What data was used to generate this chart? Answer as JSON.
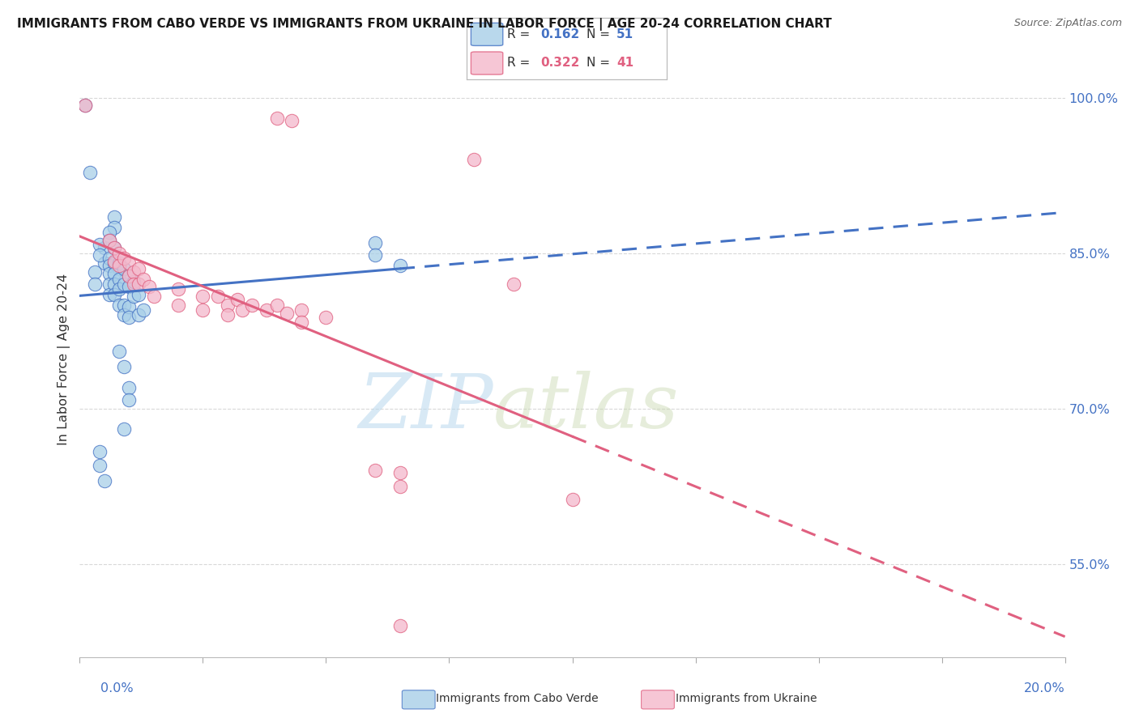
{
  "title": "IMMIGRANTS FROM CABO VERDE VS IMMIGRANTS FROM UKRAINE IN LABOR FORCE | AGE 20-24 CORRELATION CHART",
  "source": "Source: ZipAtlas.com",
  "ylabel": "In Labor Force | Age 20-24",
  "y_ticks": [
    0.55,
    0.7,
    0.85,
    1.0
  ],
  "y_tick_labels": [
    "55.0%",
    "70.0%",
    "85.0%",
    "100.0%"
  ],
  "cabo_verde_R": 0.162,
  "cabo_verde_N": 51,
  "ukraine_R": 0.322,
  "ukraine_N": 41,
  "cabo_verde_color": "#a8cfe8",
  "ukraine_color": "#f4b8cb",
  "cabo_verde_line_color": "#4472c4",
  "ukraine_line_color": "#e06080",
  "cabo_verde_points": [
    [
      0.001,
      0.993
    ],
    [
      0.002,
      0.928
    ],
    [
      0.007,
      0.885
    ],
    [
      0.007,
      0.875
    ],
    [
      0.005,
      0.855
    ],
    [
      0.005,
      0.84
    ],
    [
      0.008,
      0.835
    ],
    [
      0.006,
      0.87
    ],
    [
      0.003,
      0.832
    ],
    [
      0.003,
      0.82
    ],
    [
      0.004,
      0.858
    ],
    [
      0.004,
      0.848
    ],
    [
      0.006,
      0.862
    ],
    [
      0.006,
      0.845
    ],
    [
      0.006,
      0.838
    ],
    [
      0.006,
      0.83
    ],
    [
      0.006,
      0.82
    ],
    [
      0.006,
      0.81
    ],
    [
      0.007,
      0.855
    ],
    [
      0.007,
      0.84
    ],
    [
      0.007,
      0.83
    ],
    [
      0.007,
      0.82
    ],
    [
      0.007,
      0.81
    ],
    [
      0.008,
      0.84
    ],
    [
      0.008,
      0.825
    ],
    [
      0.008,
      0.815
    ],
    [
      0.008,
      0.8
    ],
    [
      0.009,
      0.835
    ],
    [
      0.009,
      0.82
    ],
    [
      0.009,
      0.8
    ],
    [
      0.009,
      0.79
    ],
    [
      0.01,
      0.828
    ],
    [
      0.01,
      0.818
    ],
    [
      0.01,
      0.798
    ],
    [
      0.01,
      0.788
    ],
    [
      0.011,
      0.822
    ],
    [
      0.011,
      0.808
    ],
    [
      0.012,
      0.81
    ],
    [
      0.012,
      0.79
    ],
    [
      0.013,
      0.795
    ],
    [
      0.008,
      0.755
    ],
    [
      0.009,
      0.74
    ],
    [
      0.01,
      0.72
    ],
    [
      0.01,
      0.708
    ],
    [
      0.009,
      0.68
    ],
    [
      0.06,
      0.86
    ],
    [
      0.06,
      0.848
    ],
    [
      0.065,
      0.838
    ],
    [
      0.004,
      0.658
    ],
    [
      0.004,
      0.645
    ],
    [
      0.005,
      0.63
    ]
  ],
  "ukraine_points": [
    [
      0.001,
      0.993
    ],
    [
      0.04,
      0.98
    ],
    [
      0.043,
      0.978
    ],
    [
      0.08,
      0.94
    ],
    [
      0.088,
      0.82
    ],
    [
      0.006,
      0.862
    ],
    [
      0.007,
      0.855
    ],
    [
      0.007,
      0.842
    ],
    [
      0.008,
      0.85
    ],
    [
      0.008,
      0.838
    ],
    [
      0.009,
      0.845
    ],
    [
      0.01,
      0.84
    ],
    [
      0.01,
      0.828
    ],
    [
      0.011,
      0.832
    ],
    [
      0.011,
      0.82
    ],
    [
      0.012,
      0.835
    ],
    [
      0.012,
      0.82
    ],
    [
      0.013,
      0.825
    ],
    [
      0.014,
      0.818
    ],
    [
      0.015,
      0.808
    ],
    [
      0.02,
      0.815
    ],
    [
      0.02,
      0.8
    ],
    [
      0.025,
      0.808
    ],
    [
      0.025,
      0.795
    ],
    [
      0.028,
      0.808
    ],
    [
      0.03,
      0.8
    ],
    [
      0.03,
      0.79
    ],
    [
      0.032,
      0.805
    ],
    [
      0.033,
      0.795
    ],
    [
      0.035,
      0.8
    ],
    [
      0.038,
      0.795
    ],
    [
      0.04,
      0.8
    ],
    [
      0.042,
      0.792
    ],
    [
      0.045,
      0.795
    ],
    [
      0.045,
      0.783
    ],
    [
      0.05,
      0.788
    ],
    [
      0.06,
      0.64
    ],
    [
      0.065,
      0.638
    ],
    [
      0.065,
      0.625
    ],
    [
      0.1,
      0.612
    ],
    [
      0.065,
      0.49
    ]
  ],
  "xlim": [
    0.0,
    0.2
  ],
  "ylim": [
    0.46,
    1.035
  ],
  "watermark_zip": "ZIP",
  "watermark_atlas": "atlas",
  "background_color": "#ffffff",
  "grid_color": "#d8d8d8"
}
